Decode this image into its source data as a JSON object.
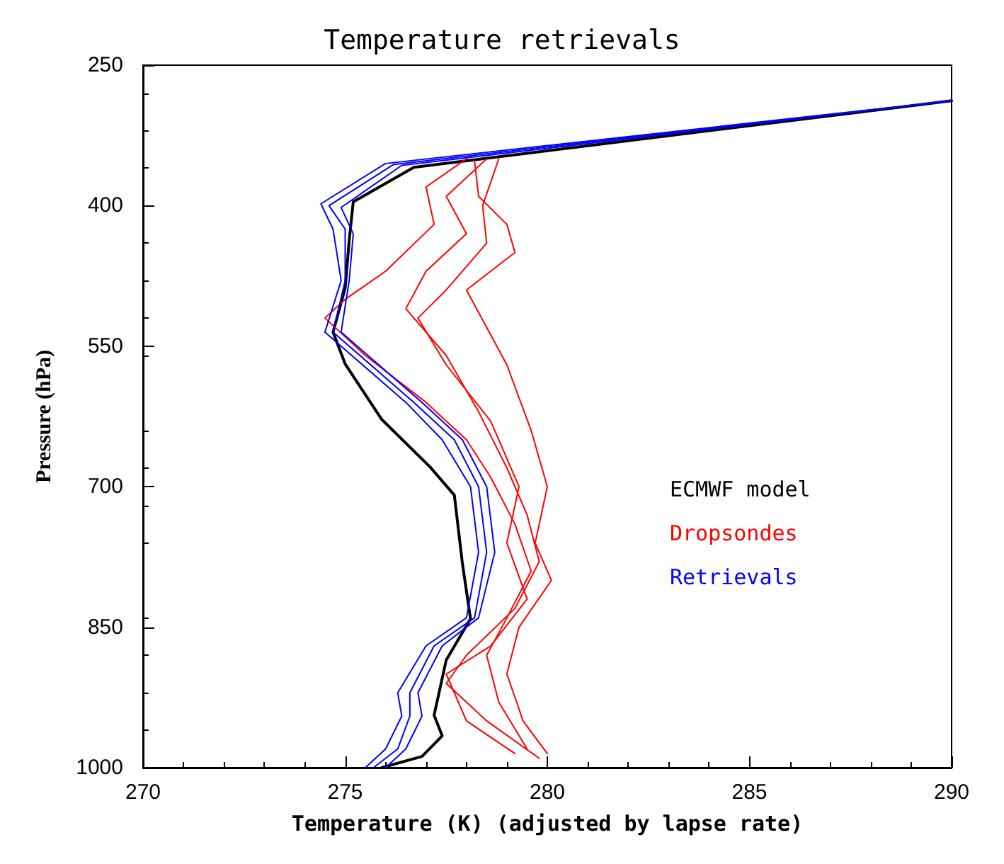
{
  "chart_data": {
    "type": "line",
    "title": "Temperature retrievals",
    "xlabel": "Temperature (K) (adjusted by lapse rate)",
    "ylabel": "Pressure (hPa)",
    "xlim": [
      270,
      290
    ],
    "xticks": [
      270,
      275,
      280,
      285,
      290
    ],
    "ylim": [
      1000,
      250
    ],
    "yticks": [
      250,
      400,
      550,
      700,
      850,
      1000
    ],
    "grid": false,
    "legend": "right",
    "marker": "none",
    "line_style": "solid",
    "series": [
      {
        "name": "ECMWF model",
        "color": "#000000",
        "x": [
          290,
          276.7,
          275.2,
          275.1,
          275.0,
          274.7,
          275.0,
          275.9,
          277.1,
          277.7,
          277.9,
          278.1,
          277.5,
          277.2,
          277.4,
          276.9,
          275.9
        ],
        "values": [
          288,
          359,
          396,
          437,
          488,
          535,
          569,
          628,
          679,
          709,
          782,
          841,
          885,
          944,
          966,
          988,
          1000
        ]
      },
      {
        "name": "Dropsondes",
        "color": "#ff0000",
        "x": [
          278,
          277.0,
          277.2,
          276.0,
          275.0,
          274.5,
          275.5,
          277.0,
          278.0,
          278.6,
          279.2,
          279.6,
          279.0,
          278.5,
          278.8,
          279.5
        ],
        "values": [
          350,
          380,
          420,
          470,
          500,
          520,
          560,
          610,
          650,
          690,
          740,
          790,
          840,
          880,
          930,
          980
        ]
      },
      {
        "color": "#ff0000",
        "x": [
          278.5,
          277.5,
          278.0,
          277.0,
          276.5,
          277.5,
          278.3,
          279.0,
          279.5,
          279.8,
          279.2,
          278.0,
          277.5,
          278.5,
          279.8
        ],
        "values": [
          350,
          390,
          430,
          470,
          510,
          560,
          620,
          680,
          730,
          780,
          830,
          880,
          910,
          950,
          990
        ]
      },
      {
        "color": "#ff0000",
        "x": [
          278.2,
          278.3,
          279.0,
          279.2,
          278.0,
          278.5,
          279.0,
          279.6,
          280.0,
          279.7,
          280.1,
          279.3,
          279.0,
          279.4,
          280.0
        ],
        "values": [
          352,
          390,
          420,
          450,
          490,
          530,
          570,
          640,
          700,
          760,
          800,
          850,
          900,
          950,
          985
        ]
      },
      {
        "color": "#ff0000",
        "x": [
          278.8,
          278.4,
          278.5,
          277.5,
          276.8,
          277.5,
          278.6,
          279.3,
          279.0,
          279.5,
          278.6,
          277.5,
          278.0,
          279.2
        ],
        "values": [
          350,
          400,
          440,
          490,
          520,
          570,
          630,
          700,
          760,
          820,
          870,
          900,
          950,
          985
        ]
      },
      {
        "name": "Retrievals",
        "color": "#0000ff",
        "x": [
          290,
          276,
          274.4,
          274.7,
          274.9,
          274.5,
          275.3,
          276.5,
          277.4,
          278.1,
          278.3,
          278.0,
          277.0,
          276.3,
          276.4,
          276.0,
          275.5
        ],
        "values": [
          288,
          355,
          398,
          425,
          480,
          535,
          565,
          610,
          650,
          700,
          770,
          840,
          870,
          920,
          945,
          980,
          1000
        ]
      },
      {
        "color": "#0000ff",
        "x": [
          290,
          276.2,
          274.6,
          275.0,
          275.0,
          274.7,
          275.5,
          276.7,
          277.7,
          278.3,
          278.5,
          278.2,
          277.2,
          276.6,
          276.6,
          276.3,
          275.7
        ],
        "values": [
          288,
          356,
          400,
          425,
          480,
          535,
          565,
          610,
          650,
          700,
          770,
          840,
          870,
          920,
          945,
          980,
          1000
        ]
      },
      {
        "color": "#0000ff",
        "x": [
          290,
          276.4,
          274.9,
          275.2,
          275.1,
          274.9,
          275.7,
          276.9,
          277.9,
          278.5,
          278.7,
          278.3,
          277.4,
          276.8,
          276.9,
          276.5,
          276.0
        ],
        "values": [
          288,
          357,
          402,
          430,
          480,
          535,
          565,
          610,
          650,
          700,
          770,
          840,
          870,
          920,
          945,
          980,
          1000
        ]
      }
    ]
  }
}
